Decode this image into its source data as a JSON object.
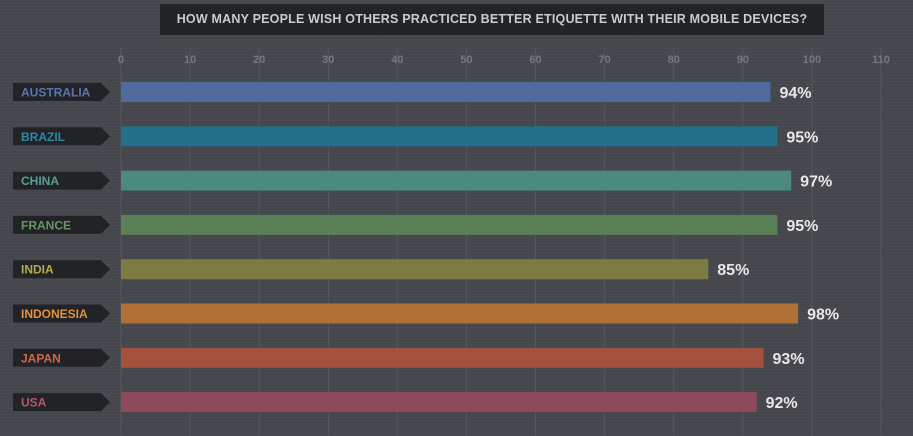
{
  "chart_data": {
    "type": "bar",
    "orientation": "horizontal",
    "title": "HOW MANY PEOPLE WISH OTHERS PRACTICED BETTER ETIQUETTE WITH THEIR MOBILE DEVICES?",
    "categories": [
      "AUSTRALIA",
      "BRAZIL",
      "CHINA",
      "FRANCE",
      "INDIA",
      "INDONESIA",
      "JAPAN",
      "USA"
    ],
    "values": [
      94,
      95,
      97,
      95,
      85,
      98,
      93,
      92
    ],
    "value_labels": [
      "94%",
      "95%",
      "97%",
      "95%",
      "85%",
      "98%",
      "93%",
      "92%"
    ],
    "xlim": [
      0,
      110
    ],
    "xticks": [
      "0",
      "10",
      "20",
      "30",
      "40",
      "50",
      "60",
      "70",
      "80",
      "90",
      "100",
      "110"
    ],
    "grid": true,
    "colors": [
      "#4f6b9e",
      "#22708a",
      "#4a8b7e",
      "#5a8058",
      "#7d7a42",
      "#b07034",
      "#a4503d",
      "#8e4a5a"
    ],
    "label_colors": [
      "#5876ae",
      "#2a89a7",
      "#56a191",
      "#66975f",
      "#b7aa55",
      "#e2913f",
      "#d3654b",
      "#b65a6f"
    ]
  }
}
